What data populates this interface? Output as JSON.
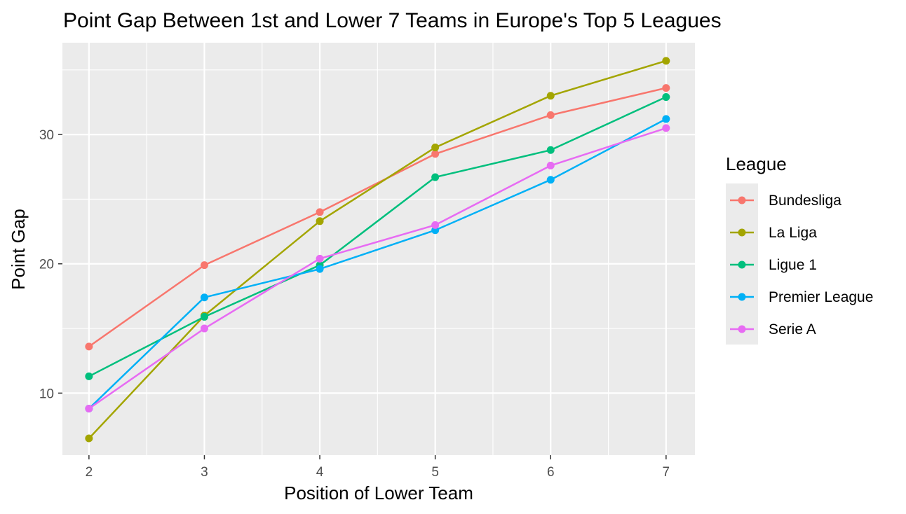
{
  "chart_data": {
    "type": "line",
    "title": "Point Gap Between 1st and Lower 7 Teams in Europe's Top 5 Leagues",
    "xlabel": "Position of Lower Team",
    "ylabel": "Point Gap",
    "x": [
      2,
      3,
      4,
      5,
      6,
      7
    ],
    "xlim": [
      1.77,
      7.25
    ],
    "ylim": [
      5.2,
      37.1
    ],
    "xticks": [
      2,
      3,
      4,
      5,
      6,
      7
    ],
    "yticks": [
      10,
      20,
      30
    ],
    "grid": true,
    "legend": {
      "title": "League",
      "position": "right"
    },
    "series": [
      {
        "name": "Bundesliga",
        "color": "#F8766D",
        "values": [
          13.6,
          19.9,
          24.0,
          28.5,
          31.5,
          33.6
        ]
      },
      {
        "name": "La Liga",
        "color": "#A3A500",
        "values": [
          6.5,
          16.0,
          23.3,
          29.0,
          33.0,
          35.7
        ]
      },
      {
        "name": "Ligue 1",
        "color": "#00BF7D",
        "values": [
          11.3,
          15.9,
          19.9,
          26.7,
          28.8,
          32.9
        ]
      },
      {
        "name": "Premier League",
        "color": "#00B0F6",
        "values": [
          8.8,
          17.4,
          19.6,
          22.6,
          26.5,
          31.2
        ]
      },
      {
        "name": "Serie A",
        "color": "#E76BF3",
        "values": [
          8.8,
          15.0,
          20.4,
          23.0,
          27.6,
          30.5
        ]
      }
    ]
  }
}
